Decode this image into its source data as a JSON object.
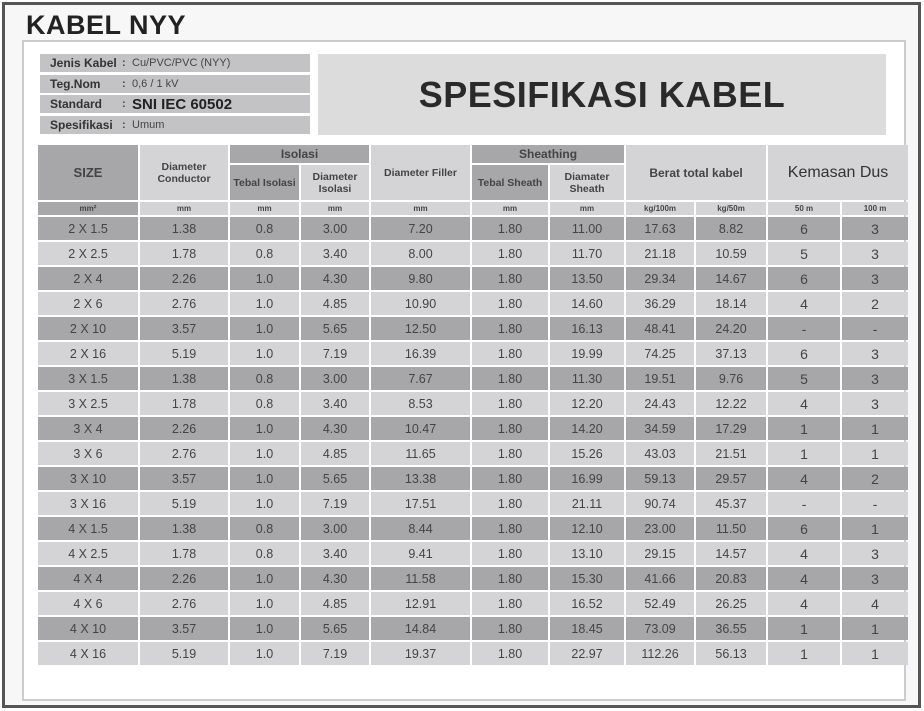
{
  "title": "KABEL NYY",
  "banner": "SPESIFIKASI KABEL",
  "info": [
    {
      "key": "Jenis Kabel",
      "value": "Cu/PVC/PVC (NYY)"
    },
    {
      "key": "Teg.Nom",
      "value": "0,6 / 1 kV"
    },
    {
      "key": "Standard",
      "value": "SNI IEC 60502"
    },
    {
      "key": "Spesifikasi",
      "value": "Umum"
    }
  ],
  "headers": {
    "size": "SIZE",
    "dia_conductor": "Diameter Conductor",
    "isolasi": "Isolasi",
    "tebal_isolasi": "Tebal Isolasi",
    "dia_isolasi": "Diameter Isolasi",
    "dia_filler": "Diameter Filler",
    "sheathing": "Sheathing",
    "tebal_sheath": "Tebal Sheath",
    "dia_sheath": "Diamater Sheath",
    "berat": "Berat total kabel",
    "kemasan": "Kemasan Dus"
  },
  "units": [
    "mm²",
    "mm",
    "mm",
    "mm",
    "mm",
    "mm",
    "mm",
    "kg/100m",
    "kg/50m",
    "50 m",
    "100 m"
  ],
  "rows": [
    [
      "2 X 1.5",
      "1.38",
      "0.8",
      "3.00",
      "7.20",
      "1.80",
      "11.00",
      "17.63",
      "8.82",
      "6",
      "3"
    ],
    [
      "2 X 2.5",
      "1.78",
      "0.8",
      "3.40",
      "8.00",
      "1.80",
      "11.70",
      "21.18",
      "10.59",
      "5",
      "3"
    ],
    [
      "2 X 4",
      "2.26",
      "1.0",
      "4.30",
      "9.80",
      "1.80",
      "13.50",
      "29.34",
      "14.67",
      "6",
      "3"
    ],
    [
      "2 X 6",
      "2.76",
      "1.0",
      "4.85",
      "10.90",
      "1.80",
      "14.60",
      "36.29",
      "18.14",
      "4",
      "2"
    ],
    [
      "2 X 10",
      "3.57",
      "1.0",
      "5.65",
      "12.50",
      "1.80",
      "16.13",
      "48.41",
      "24.20",
      "-",
      "-"
    ],
    [
      "2 X 16",
      "5.19",
      "1.0",
      "7.19",
      "16.39",
      "1.80",
      "19.99",
      "74.25",
      "37.13",
      "6",
      "3"
    ],
    [
      "3 X 1.5",
      "1.38",
      "0.8",
      "3.00",
      "7.67",
      "1.80",
      "11.30",
      "19.51",
      "9.76",
      "5",
      "3"
    ],
    [
      "3 X 2.5",
      "1.78",
      "0.8",
      "3.40",
      "8.53",
      "1.80",
      "12.20",
      "24.43",
      "12.22",
      "4",
      "3"
    ],
    [
      "3 X 4",
      "2.26",
      "1.0",
      "4.30",
      "10.47",
      "1.80",
      "14.20",
      "34.59",
      "17.29",
      "1",
      "1"
    ],
    [
      "3 X 6",
      "2.76",
      "1.0",
      "4.85",
      "11.65",
      "1.80",
      "15.26",
      "43.03",
      "21.51",
      "1",
      "1"
    ],
    [
      "3 X  10",
      "3.57",
      "1.0",
      "5.65",
      "13.38",
      "1.80",
      "16.99",
      "59.13",
      "29.57",
      "4",
      "2"
    ],
    [
      "3 X 16",
      "5.19",
      "1.0",
      "7.19",
      "17.51",
      "1.80",
      "21.11",
      "90.74",
      "45.37",
      "-",
      "-"
    ],
    [
      "4 X 1.5",
      "1.38",
      "0.8",
      "3.00",
      "8.44",
      "1.80",
      "12.10",
      "23.00",
      "11.50",
      "6",
      "1"
    ],
    [
      "4 X 2.5",
      "1.78",
      "0.8",
      "3.40",
      "9.41",
      "1.80",
      "13.10",
      "29.15",
      "14.57",
      "4",
      "3"
    ],
    [
      "4 X 4",
      "2.26",
      "1.0",
      "4.30",
      "11.58",
      "1.80",
      "15.30",
      "41.66",
      "20.83",
      "4",
      "3"
    ],
    [
      "4 X 6",
      "2.76",
      "1.0",
      "4.85",
      "12.91",
      "1.80",
      "16.52",
      "52.49",
      "26.25",
      "4",
      "4"
    ],
    [
      "4 X 10",
      "3.57",
      "1.0",
      "5.65",
      "14.84",
      "1.80",
      "18.45",
      "73.09",
      "36.55",
      "1",
      "1"
    ],
    [
      "4 X 16",
      "5.19",
      "1.0",
      "7.19",
      "19.37",
      "1.80",
      "22.97",
      "112.26",
      "56.13",
      "1",
      "1"
    ]
  ]
}
